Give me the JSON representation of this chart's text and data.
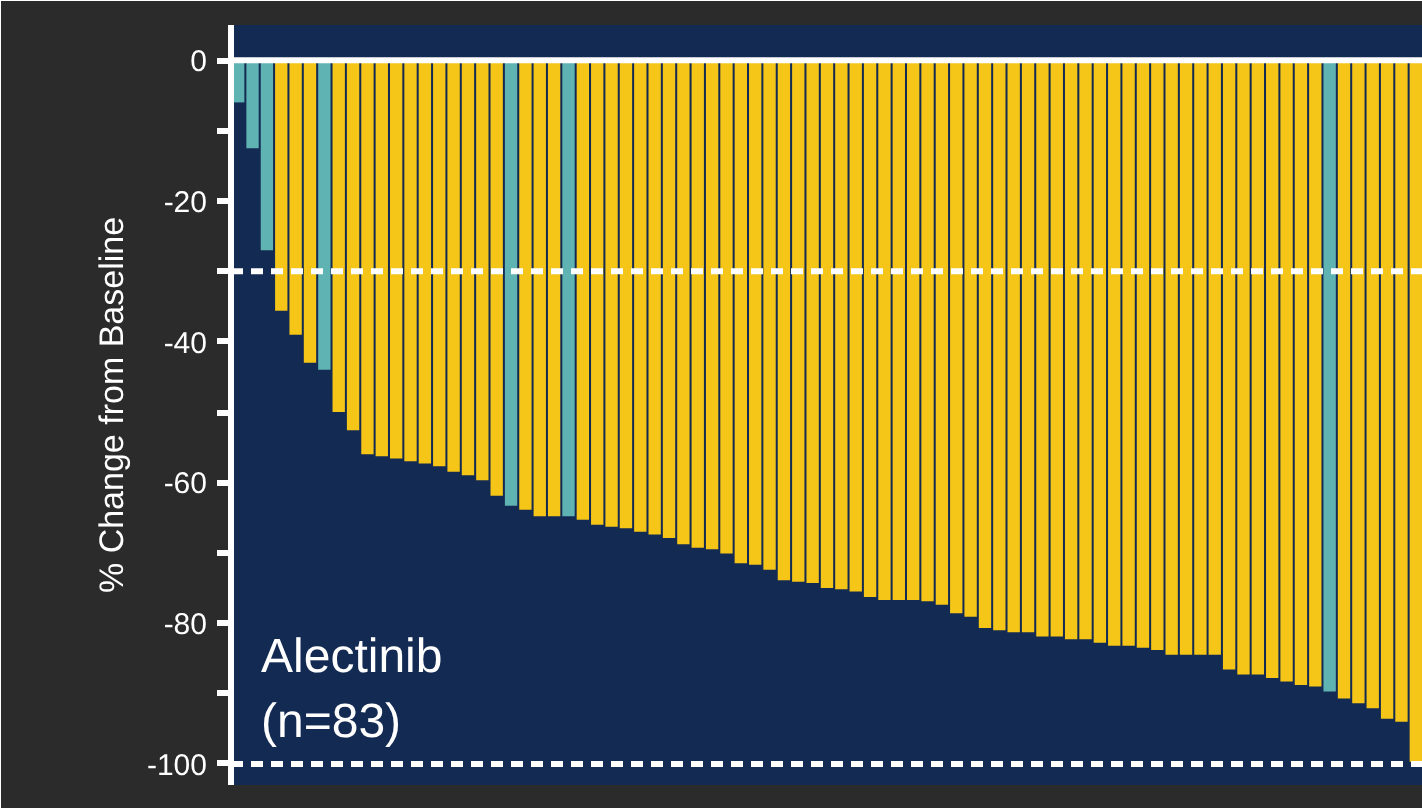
{
  "chart_data": {
    "type": "bar",
    "ylabel": "% Change from Baseline",
    "categories": [
      null,
      null,
      null,
      null,
      null,
      null,
      null,
      null,
      null,
      null,
      null,
      null,
      null,
      null,
      null,
      null,
      null,
      null,
      null,
      null,
      null,
      null,
      null,
      null,
      null,
      null,
      null,
      null,
      null,
      null,
      null,
      null,
      null,
      null,
      null,
      null,
      null,
      null,
      null,
      null,
      null,
      null,
      null,
      null,
      null,
      null,
      null,
      null,
      null,
      null,
      null,
      null,
      null,
      null,
      null,
      null,
      null,
      null,
      null,
      null,
      null,
      null,
      null,
      null,
      null,
      null,
      null,
      null,
      null,
      null,
      null,
      null,
      null,
      null,
      null,
      null,
      null,
      null,
      null,
      null,
      null,
      null,
      null
    ],
    "values": [
      -6,
      -12.5,
      -27,
      -35.6,
      -39,
      -43,
      -44,
      -50,
      -52.6,
      -56,
      -56.3,
      -56.6,
      -57,
      -57.3,
      -57.7,
      -58.5,
      -59,
      -59.7,
      -61.9,
      -63.3,
      -63.9,
      -64.8,
      -64.8,
      -64.8,
      -65.3,
      -66,
      -66.3,
      -66.5,
      -67,
      -67.4,
      -67.9,
      -68.8,
      -69.3,
      -69.5,
      -70.1,
      -71.5,
      -71.7,
      -72.4,
      -73.9,
      -74.1,
      -74.3,
      -75,
      -75.2,
      -75.5,
      -76.3,
      -76.7,
      -76.7,
      -76.7,
      -76.9,
      -77.4,
      -78.6,
      -79.1,
      -80.7,
      -81,
      -81.3,
      -81.3,
      -81.9,
      -81.9,
      -82.3,
      -82.3,
      -82.8,
      -83.2,
      -83.2,
      -83.5,
      -83.8,
      -84.5,
      -84.5,
      -84.5,
      -84.5,
      -86.6,
      -87.3,
      -87.3,
      -87.8,
      -88.3,
      -88.8,
      -89,
      -89.7,
      -90.7,
      -91.4,
      -92.1,
      -93.6,
      -94,
      -99.7
    ],
    "colors": [
      "#5fb3b3",
      "#5fb3b3",
      "#5fb3b3",
      "#f5c518",
      "#f5c518",
      "#f5c518",
      "#5fb3b3",
      "#f5c518",
      "#f5c518",
      "#f5c518",
      "#f5c518",
      "#f5c518",
      "#f5c518",
      "#f5c518",
      "#f5c518",
      "#f5c518",
      "#f5c518",
      "#f5c518",
      "#f5c518",
      "#5fb3b3",
      "#f5c518",
      "#f5c518",
      "#f5c518",
      "#5fb3b3",
      "#f5c518",
      "#f5c518",
      "#f5c518",
      "#f5c518",
      "#f5c518",
      "#f5c518",
      "#f5c518",
      "#f5c518",
      "#f5c518",
      "#f5c518",
      "#f5c518",
      "#f5c518",
      "#f5c518",
      "#f5c518",
      "#f5c518",
      "#f5c518",
      "#f5c518",
      "#f5c518",
      "#f5c518",
      "#f5c518",
      "#f5c518",
      "#f5c518",
      "#f5c518",
      "#f5c518",
      "#f5c518",
      "#f5c518",
      "#f5c518",
      "#f5c518",
      "#f5c518",
      "#f5c518",
      "#f5c518",
      "#f5c518",
      "#f5c518",
      "#f5c518",
      "#f5c518",
      "#f5c518",
      "#f5c518",
      "#f5c518",
      "#f5c518",
      "#f5c518",
      "#f5c518",
      "#f5c518",
      "#f5c518",
      "#f5c518",
      "#f5c518",
      "#f5c518",
      "#f5c518",
      "#f5c518",
      "#f5c518",
      "#f5c518",
      "#f5c518",
      "#f5c518",
      "#5fb3b3",
      "#f5c518",
      "#f5c518",
      "#f5c518",
      "#f5c518",
      "#f5c518",
      "#f5c518"
    ],
    "ylim": [
      -103,
      5
    ],
    "yticks": [
      0,
      {
        "value": -10,
        "label": null
      },
      -20,
      {
        "value": -30,
        "label": null
      },
      -40,
      {
        "value": -50,
        "label": null
      },
      -60,
      {
        "value": -70,
        "label": null
      },
      -80,
      {
        "value": -90,
        "label": null
      },
      -100
    ],
    "ref_lines": [
      {
        "axis": "y",
        "value": 0,
        "color": "#ffffff",
        "line_style": "solid"
      },
      {
        "axis": "y",
        "value": -30,
        "color": "#ffffff",
        "line_style": "dashed"
      },
      {
        "axis": "y",
        "value": -100,
        "color": "#ffffff",
        "line_style": "dashed"
      }
    ],
    "annotations": [
      "Alectinib\n(n=83)"
    ],
    "grid": false,
    "tick_labels": "y"
  }
}
